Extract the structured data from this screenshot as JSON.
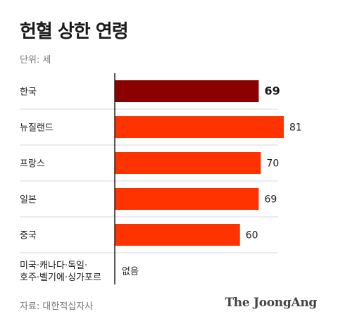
{
  "title": "헌혈 상한 연령",
  "unit_label": "단위: 세",
  "source": "자료: 대한적십자사",
  "brand": "The JoongAng",
  "colors": {
    "highlight": "#8b0000",
    "bar": "#ff3300",
    "grid": "#d9d9d9",
    "axis": "#222222"
  },
  "chart_data": {
    "type": "bar",
    "orientation": "horizontal",
    "categories": [
      "한국",
      "뉴질랜드",
      "프랑스",
      "일본",
      "중국",
      "미국·캐나다·독일·\n호주·벨기에·싱가포르"
    ],
    "values": [
      69,
      81,
      70,
      69,
      60,
      null
    ],
    "value_labels": [
      "69",
      "81",
      "70",
      "69",
      "60",
      "없음"
    ],
    "highlight_index": 0,
    "xlim": [
      0,
      81
    ]
  }
}
